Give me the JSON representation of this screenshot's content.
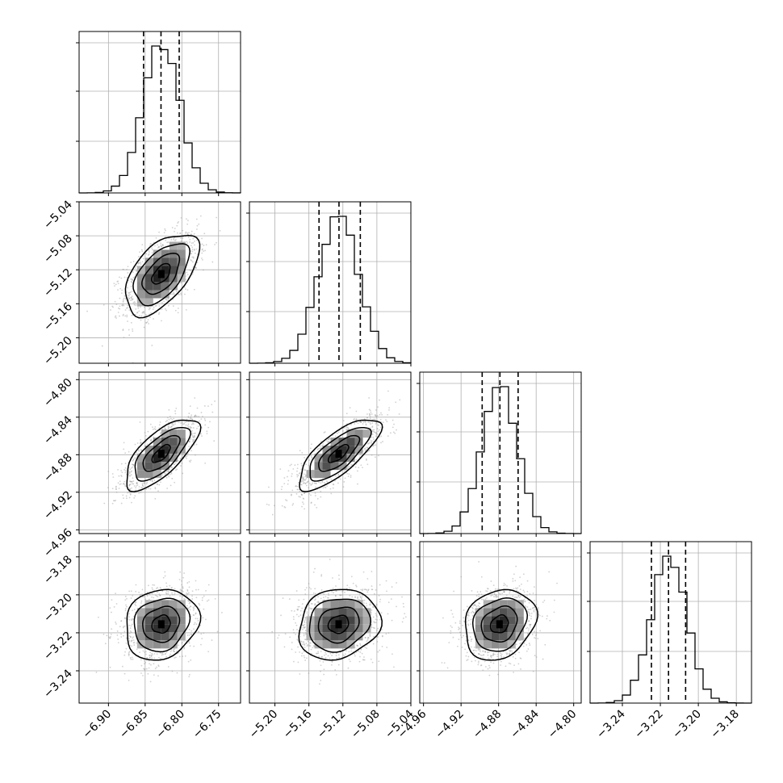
{
  "chart_data": {
    "type": "corner",
    "parameters": 4,
    "style": {
      "grid": true,
      "hist_color": "#000000",
      "quantile_linestyle": "dashed",
      "point_color": "#9a9a9a"
    },
    "axes": [
      {
        "range": [
          -6.94,
          -6.72
        ],
        "ticks": [
          -6.9,
          -6.85,
          -6.8,
          -6.75
        ],
        "tick_labels": [
          "−6.90",
          "−6.85",
          "−6.80",
          "−6.75"
        ]
      },
      {
        "range": [
          -5.23,
          -5.04
        ],
        "ticks": [
          -5.2,
          -5.16,
          -5.12,
          -5.08,
          -5.04
        ],
        "tick_labels": [
          "−5.20",
          "−5.16",
          "−5.12",
          "−5.08",
          "−5.04"
        ]
      },
      {
        "range": [
          -4.964,
          -4.792
        ],
        "ticks": [
          -4.96,
          -4.92,
          -4.88,
          -4.84,
          -4.8
        ],
        "tick_labels": [
          "−4.96",
          "−4.92",
          "−4.88",
          "−4.84",
          "−4.80"
        ]
      },
      {
        "range": [
          -3.257,
          -3.172
        ],
        "ticks": [
          -3.24,
          -3.22,
          -3.2,
          -3.18
        ],
        "tick_labels": [
          "−3.24",
          "−3.22",
          "−3.20",
          "−3.18"
        ]
      }
    ],
    "marginals": [
      {
        "mean": -6.828,
        "sd": 0.025,
        "quantiles": [
          -6.8522,
          -6.8284,
          -6.8036
        ],
        "hist_rel_max": 1.0
      },
      {
        "mean": -5.125,
        "sd": 0.024,
        "quantiles": [
          -5.1481,
          -5.1246,
          -5.0995
        ],
        "hist_rel_max": 1.0
      },
      {
        "mean": -4.879,
        "sd": 0.019,
        "quantiles": [
          -4.8975,
          -4.8786,
          -4.8592
        ],
        "hist_rel_max": 1.0
      },
      {
        "mean": -3.2155,
        "sd": 0.0093,
        "quantiles": [
          -3.2247,
          -3.2157,
          -3.2067
        ],
        "hist_rel_max": 1.0
      }
    ],
    "correlations": [
      [
        1.0,
        0.55,
        0.7,
        0.15
      ],
      [
        0.55,
        1.0,
        0.75,
        0.15
      ],
      [
        0.7,
        0.75,
        1.0,
        0.2
      ],
      [
        0.15,
        0.15,
        0.2,
        1.0
      ]
    ],
    "contour_sigma_levels": [
      0.5,
      1.0,
      1.5,
      2.0
    ]
  }
}
